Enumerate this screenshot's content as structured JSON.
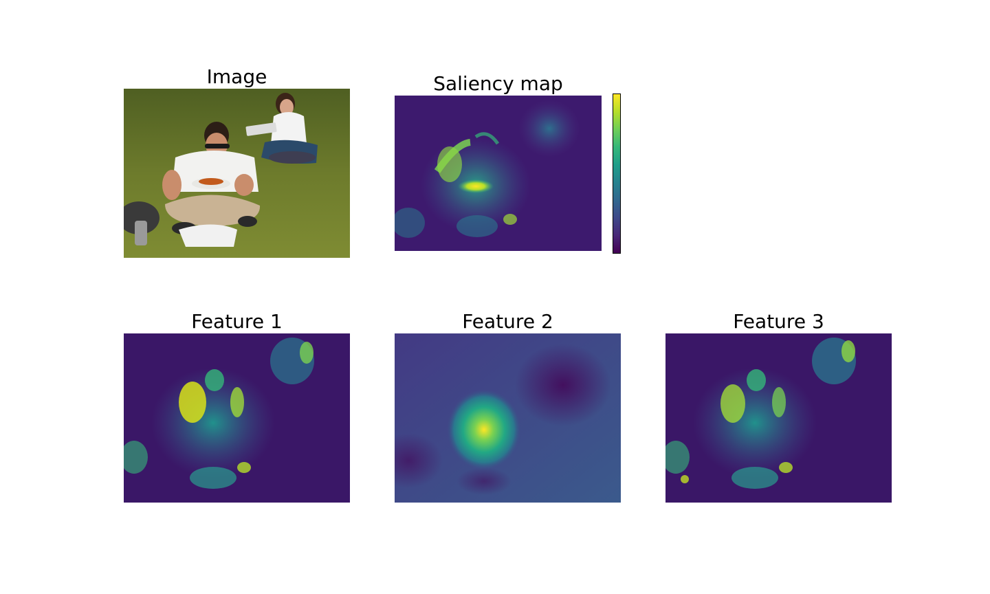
{
  "chart_data": {
    "type": "heatmap",
    "colormap": "viridis",
    "panels": [
      {
        "id": "image",
        "title": "Image",
        "kind": "photo"
      },
      {
        "id": "saliency",
        "title": "Saliency map",
        "kind": "heatmap",
        "colorbar": true
      },
      {
        "id": "feature1",
        "title": "Feature 1",
        "kind": "heatmap"
      },
      {
        "id": "feature2",
        "title": "Feature 2",
        "kind": "heatmap"
      },
      {
        "id": "feature3",
        "title": "Feature 3",
        "kind": "heatmap"
      }
    ],
    "colorbar_ticks": []
  },
  "colors": {
    "viridis_low": "#440154",
    "viridis_mid": "#21918c",
    "viridis_high": "#fde725",
    "grass": "#6b7a2a",
    "shirt": "#f2f2f0",
    "pants": "#c9b394"
  }
}
